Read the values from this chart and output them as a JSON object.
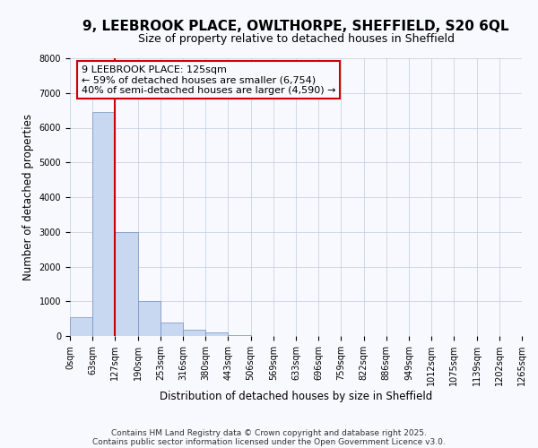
{
  "title_line1": "9, LEEBROOK PLACE, OWLTHORPE, SHEFFIELD, S20 6QL",
  "title_line2": "Size of property relative to detached houses in Sheffield",
  "xlabel": "Distribution of detached houses by size in Sheffield",
  "ylabel": "Number of detached properties",
  "bar_values": [
    550,
    6450,
    3000,
    1000,
    380,
    170,
    100,
    30,
    0,
    0,
    0,
    0,
    0,
    0,
    0,
    0,
    0,
    0,
    0,
    0
  ],
  "bar_color": "#c8d8f0",
  "bar_edge_color": "#7090c0",
  "x_labels": [
    "0sqm",
    "63sqm",
    "127sqm",
    "190sqm",
    "253sqm",
    "316sqm",
    "380sqm",
    "443sqm",
    "506sqm",
    "569sqm",
    "633sqm",
    "696sqm",
    "759sqm",
    "822sqm",
    "886sqm",
    "949sqm",
    "1012sqm",
    "1075sqm",
    "1139sqm",
    "1202sqm",
    "1265sqm"
  ],
  "ylim": [
    0,
    8000
  ],
  "yticks": [
    0,
    1000,
    2000,
    3000,
    4000,
    5000,
    6000,
    7000,
    8000
  ],
  "vline_x": 2,
  "vline_color": "#cc0000",
  "annotation_text": "9 LEEBROOK PLACE: 125sqm\n← 59% of detached houses are smaller (6,754)\n40% of semi-detached houses are larger (4,590) →",
  "annotation_box_color": "#cc0000",
  "footer_line1": "Contains HM Land Registry data © Crown copyright and database right 2025.",
  "footer_line2": "Contains public sector information licensed under the Open Government Licence v3.0.",
  "bg_color": "#f8f8ff",
  "grid_color": "#c0ccdd",
  "title_fontsize": 11,
  "subtitle_fontsize": 9,
  "axis_label_fontsize": 8.5,
  "tick_fontsize": 7,
  "annotation_fontsize": 8,
  "footer_fontsize": 6.5
}
